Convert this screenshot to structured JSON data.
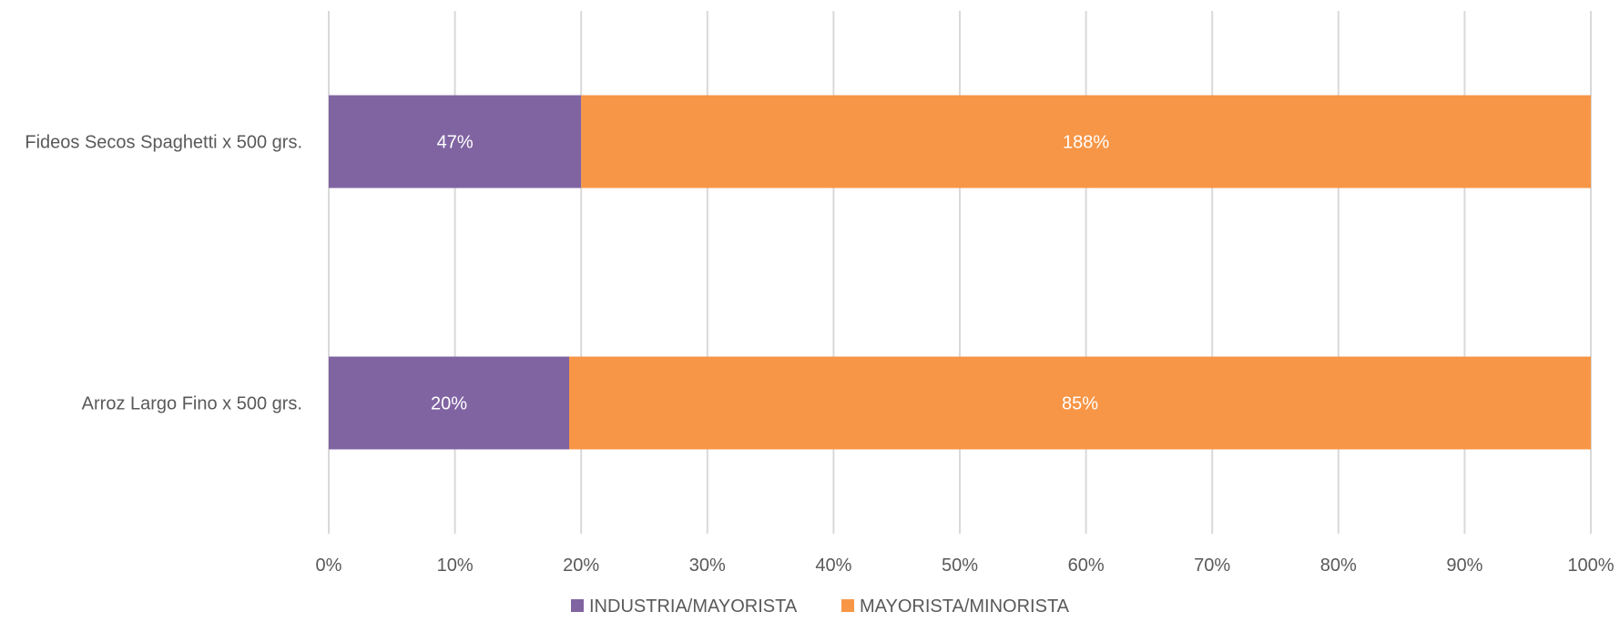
{
  "chart_data": {
    "type": "bar",
    "orientation": "horizontal",
    "stacked": "percent",
    "categories": [
      "Fideos Secos Spaghetti x 500 grs.",
      "Arroz Largo Fino x 500 grs."
    ],
    "series": [
      {
        "name": "INDUSTRIA/MAYORISTA",
        "color": "#8064a2",
        "values": [
          47,
          20
        ],
        "labels": [
          "47%",
          "20%"
        ]
      },
      {
        "name": "MAYORISTA/MINORISTA",
        "color": "#f79646",
        "values": [
          188,
          85
        ],
        "labels": [
          "188%",
          "85%"
        ]
      }
    ],
    "xlim": [
      0,
      100
    ],
    "xticks": [
      "0%",
      "10%",
      "20%",
      "30%",
      "40%",
      "50%",
      "60%",
      "70%",
      "80%",
      "90%",
      "100%"
    ],
    "grid": true,
    "legend_position": "bottom",
    "colors": {
      "gridline": "#d9d9d9",
      "text": "#595959",
      "data_label": "#ffffff"
    }
  }
}
